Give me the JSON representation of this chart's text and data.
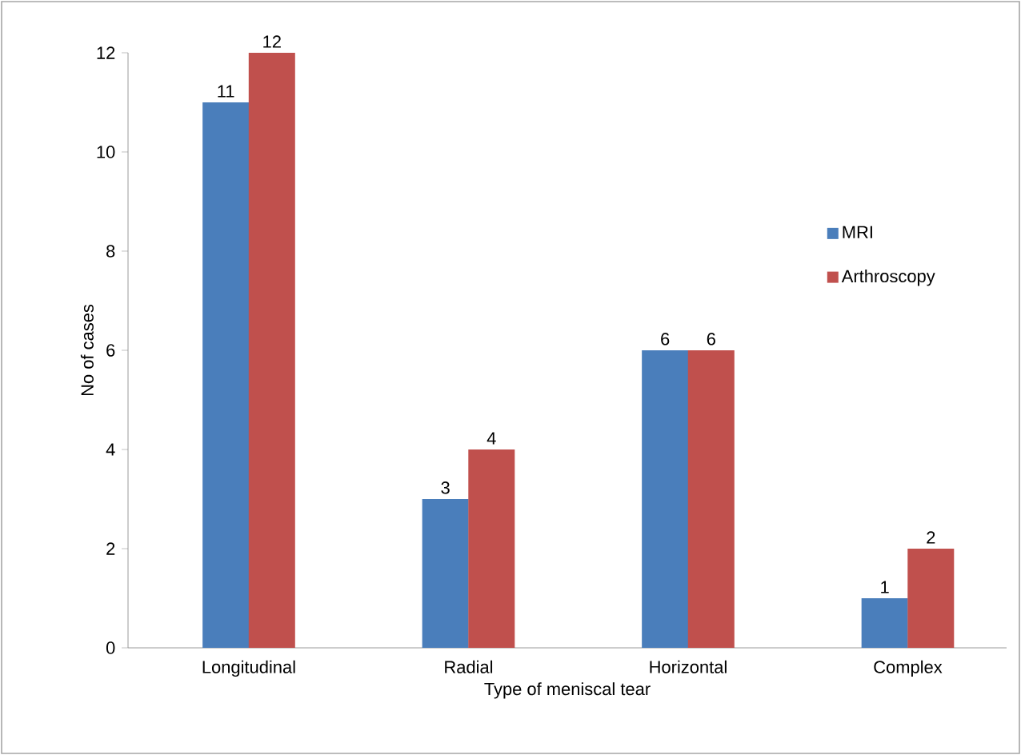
{
  "chart_data": {
    "type": "bar",
    "xlabel": "Type of meniscal tear",
    "ylabel": "No of cases",
    "categories": [
      "Longitudinal",
      "Radial",
      "Horizontal",
      "Complex"
    ],
    "series": [
      {
        "name": "MRI",
        "color": "#4a7ebb",
        "values": [
          11,
          3,
          6,
          1
        ]
      },
      {
        "name": "Arthroscopy",
        "color": "#c0504d",
        "values": [
          12,
          4,
          6,
          2
        ]
      }
    ],
    "ylim": [
      0,
      12
    ],
    "yticks": [
      0,
      2,
      4,
      6,
      8,
      10,
      12
    ],
    "grid": false,
    "legend": "right",
    "data_labels": true
  }
}
